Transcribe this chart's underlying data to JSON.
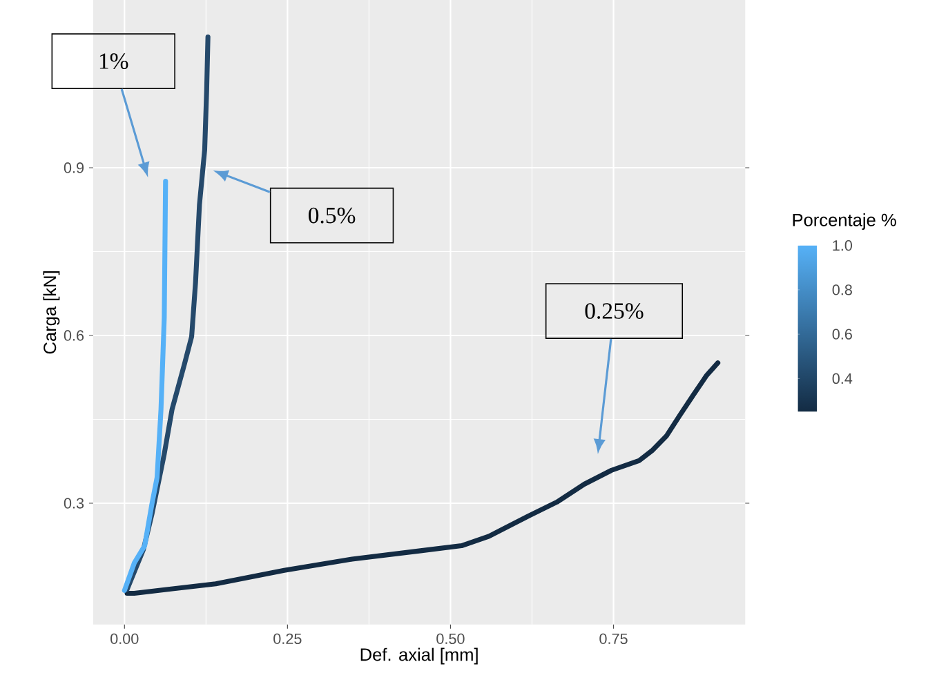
{
  "chart_data": {
    "type": "line",
    "xlabel": "Def. axial [mm]",
    "ylabel": "Carga [kN]",
    "clabel": "Porcentaje %",
    "xlim": [
      -0.048,
      0.952
    ],
    "ylim": [
      0.083,
      1.2
    ],
    "xticks": [
      {
        "value": 0,
        "label": "0.00"
      },
      {
        "value": 0.25,
        "label": "0.25"
      },
      {
        "value": 0.5,
        "label": "0.50"
      },
      {
        "value": 0.75,
        "label": "0.75"
      }
    ],
    "yticks": [
      0.3,
      0.6,
      0.9
    ],
    "clim": [
      0.25,
      1.0
    ],
    "cticks": [
      0.4,
      0.6,
      0.8,
      {
        "value": 1.0,
        "label": "1.0"
      }
    ],
    "grid": true,
    "series": [
      {
        "color": "#132B43",
        "x": [
          0.004,
          0.015,
          0.14,
          0.245,
          0.349,
          0.454,
          0.517,
          0.559,
          0.621,
          0.663,
          0.705,
          0.747,
          0.789,
          0.81,
          0.831,
          0.851,
          0.872,
          0.893,
          0.91
        ],
        "values": [
          0.139,
          0.139,
          0.156,
          0.18,
          0.2,
          0.215,
          0.224,
          0.241,
          0.278,
          0.302,
          0.334,
          0.359,
          0.376,
          0.395,
          0.42,
          0.456,
          0.493,
          0.529,
          0.551
        ]
      },
      {
        "color": "#25496B",
        "x": [
          0.004,
          0.029,
          0.042,
          0.061,
          0.073,
          0.092,
          0.103,
          0.109,
          0.115,
          0.123,
          0.126,
          0.128
        ],
        "values": [
          0.146,
          0.217,
          0.28,
          0.388,
          0.468,
          0.549,
          0.598,
          0.695,
          0.834,
          0.932,
          1.037,
          1.134
        ]
      },
      {
        "color": "#56B1F7",
        "x": [
          0.0,
          0.015,
          0.031,
          0.042,
          0.05,
          0.056,
          0.061,
          0.063
        ],
        "values": [
          0.144,
          0.193,
          0.224,
          0.298,
          0.346,
          0.468,
          0.632,
          0.876
        ]
      }
    ],
    "annotations": [
      "1%",
      "0.5%",
      "0.25%"
    ]
  }
}
